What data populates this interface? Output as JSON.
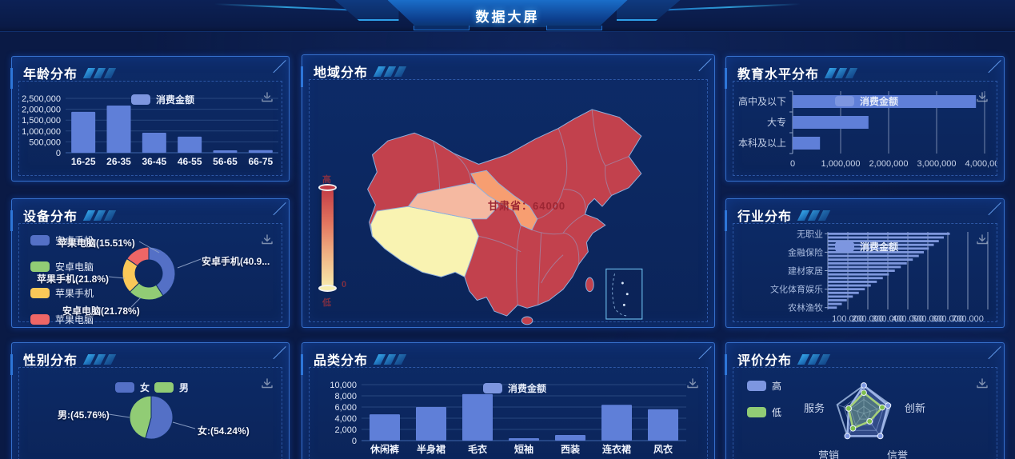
{
  "header": {
    "title": "数据大屏"
  },
  "icons": {
    "download": "download-arrow-tray"
  },
  "colors": {
    "bar_blue": "#5f7fd8",
    "legend_icon_blue": "#7d96e0",
    "pie_blue": "#5470c6",
    "pie_green": "#91cc75",
    "pie_yellow": "#fac858",
    "pie_red": "#ee6666",
    "radar_high": "#7d96e0",
    "radar_low": "#91cc75",
    "map_base": "#c2414d",
    "map_gansu": "#f79e71",
    "map_qinghai": "#f5b9a1",
    "map_tibet": "#f9f3b2",
    "map_border": "#8fb0dd",
    "grid_dark": "#27477f",
    "grid_bright": "#c9d6ee",
    "axis_text": "#dfe7f7"
  },
  "chart_data": [
    {
      "type": "bar",
      "title": "年龄分布",
      "legend": [
        "消费金额"
      ],
      "categories": [
        "16-25",
        "26-35",
        "36-45",
        "46-55",
        "56-65",
        "66-75"
      ],
      "values": [
        1880000,
        2170000,
        920000,
        740000,
        110000,
        120000
      ],
      "ylim": [
        0,
        2500000
      ],
      "y_ticks": [
        "0",
        "500,000",
        "1,000,000",
        "1,500,000",
        "2,000,000",
        "2,500,000"
      ]
    },
    {
      "type": "map",
      "title": "地域分布",
      "label": "甘肃省：64000",
      "highlight_region": {
        "name": "甘肃省",
        "value": 64000
      },
      "visualmap": {
        "high": "高",
        "low": "低",
        "zero": "0"
      }
    },
    {
      "type": "bar-horizontal",
      "title": "教育水平分布",
      "legend": [
        "消费金额"
      ],
      "categories": [
        "高中及以下",
        "大专",
        "本科及以上"
      ],
      "values": [
        3820000,
        1580000,
        570000
      ],
      "xlim": [
        0,
        4000000
      ],
      "x_ticks": [
        "0",
        "1,000,000",
        "2,000,000",
        "3,000,000",
        "4,000,000"
      ]
    },
    {
      "type": "pie-donut",
      "title": "设备分布",
      "legend": [
        "安卓手机",
        "安卓电脑",
        "苹果手机",
        "苹果电脑"
      ],
      "slices": [
        {
          "name": "安卓手机",
          "pct": 40.91,
          "label": "安卓手机(40.9..."
        },
        {
          "name": "安卓电脑",
          "pct": 21.78,
          "label": "安卓电脑(21.78%)"
        },
        {
          "name": "苹果手机",
          "pct": 21.8,
          "label": "苹果手机(21.8%)"
        },
        {
          "name": "苹果电脑",
          "pct": 15.51,
          "label": "苹果电脑(15.51%)"
        }
      ]
    },
    {
      "type": "bar-horizontal",
      "title": "行业分布",
      "legend": [
        "消费金额"
      ],
      "visible_categories": [
        "无职业",
        "金融保险",
        "建材家居",
        "文化体育娱乐",
        "农林渔牧"
      ],
      "values": [
        610000,
        580000,
        555000,
        530000,
        505000,
        480000,
        455000,
        425000,
        395000,
        365000,
        335000,
        305000,
        275000,
        245000,
        215000,
        185000,
        155000,
        125000,
        95000,
        70000,
        45000
      ],
      "xlim": [
        0,
        800000
      ],
      "x_ticks": [
        "100,000",
        "200,000",
        "300,000",
        "400,000",
        "500,000",
        "600,000",
        "700,000"
      ]
    },
    {
      "type": "pie",
      "title": "性别分布",
      "legend": [
        "女",
        "男"
      ],
      "slices": [
        {
          "name": "女",
          "pct": 54.24,
          "label": "女:(54.24%)"
        },
        {
          "name": "男",
          "pct": 45.76,
          "label": "男:(45.76%)"
        }
      ]
    },
    {
      "type": "bar",
      "title": "品类分布",
      "legend": [
        "消费金额"
      ],
      "categories": [
        "休闲裤",
        "半身裙",
        "毛衣",
        "短袖",
        "西装",
        "连衣裙",
        "风衣"
      ],
      "values": [
        4700,
        6000,
        8300,
        430,
        1000,
        6400,
        5600
      ],
      "ylim": [
        0,
        10000
      ],
      "y_ticks": [
        "0",
        "2,000",
        "4,000",
        "6,000",
        "8,000",
        "10,000"
      ]
    },
    {
      "type": "radar",
      "title": "评价分布",
      "legend": [
        "高",
        "低"
      ],
      "axes": [
        "",
        "创新",
        "信誉",
        "营销",
        "服务"
      ],
      "series": [
        {
          "name": "高",
          "values": [
            1.0,
            0.91,
            1.0,
            1.0,
            0.57
          ]
        },
        {
          "name": "低",
          "values": [
            0.74,
            0.69,
            0.35,
            0.66,
            0.57
          ]
        }
      ]
    }
  ]
}
